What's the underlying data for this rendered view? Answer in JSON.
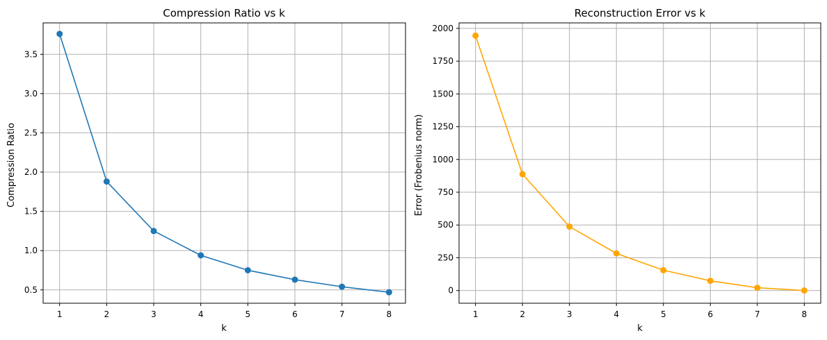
{
  "chart_data": [
    {
      "type": "line",
      "title": "Compression Ratio vs k",
      "xlabel": "k",
      "ylabel": "Compression Ratio",
      "x": [
        1,
        2,
        3,
        4,
        5,
        6,
        7,
        8
      ],
      "series": [
        {
          "values": [
            3.76,
            1.88,
            1.25,
            0.94,
            0.75,
            0.63,
            0.54,
            0.47
          ],
          "color": "#1f77b4",
          "marker": "circle"
        }
      ],
      "xlim": [
        0.65,
        8.35
      ],
      "ylim": [
        0.33,
        3.9
      ],
      "xticks": [
        1,
        2,
        3,
        4,
        5,
        6,
        7,
        8
      ],
      "yticks": [
        0.5,
        1.0,
        1.5,
        2.0,
        2.5,
        3.0,
        3.5
      ],
      "ytick_labels": [
        "0.5",
        "1.0",
        "1.5",
        "2.0",
        "2.5",
        "3.0",
        "3.5"
      ],
      "grid": true
    },
    {
      "type": "line",
      "title": "Reconstruction Error vs k",
      "xlabel": "k",
      "ylabel": "Error (Frobenius norm)",
      "x": [
        1,
        2,
        3,
        4,
        5,
        6,
        7,
        8
      ],
      "series": [
        {
          "values": [
            1945,
            888,
            488,
            283,
            155,
            74,
            21,
            0
          ],
          "color": "#ffa500",
          "marker": "circle"
        }
      ],
      "xlim": [
        0.65,
        8.35
      ],
      "ylim": [
        -97,
        2042
      ],
      "xticks": [
        1,
        2,
        3,
        4,
        5,
        6,
        7,
        8
      ],
      "yticks": [
        0,
        250,
        500,
        750,
        1000,
        1250,
        1500,
        1750,
        2000
      ],
      "ytick_labels": [
        "0",
        "250",
        "500",
        "750",
        "1000",
        "1250",
        "1500",
        "1750",
        "2000"
      ],
      "grid": true
    }
  ]
}
